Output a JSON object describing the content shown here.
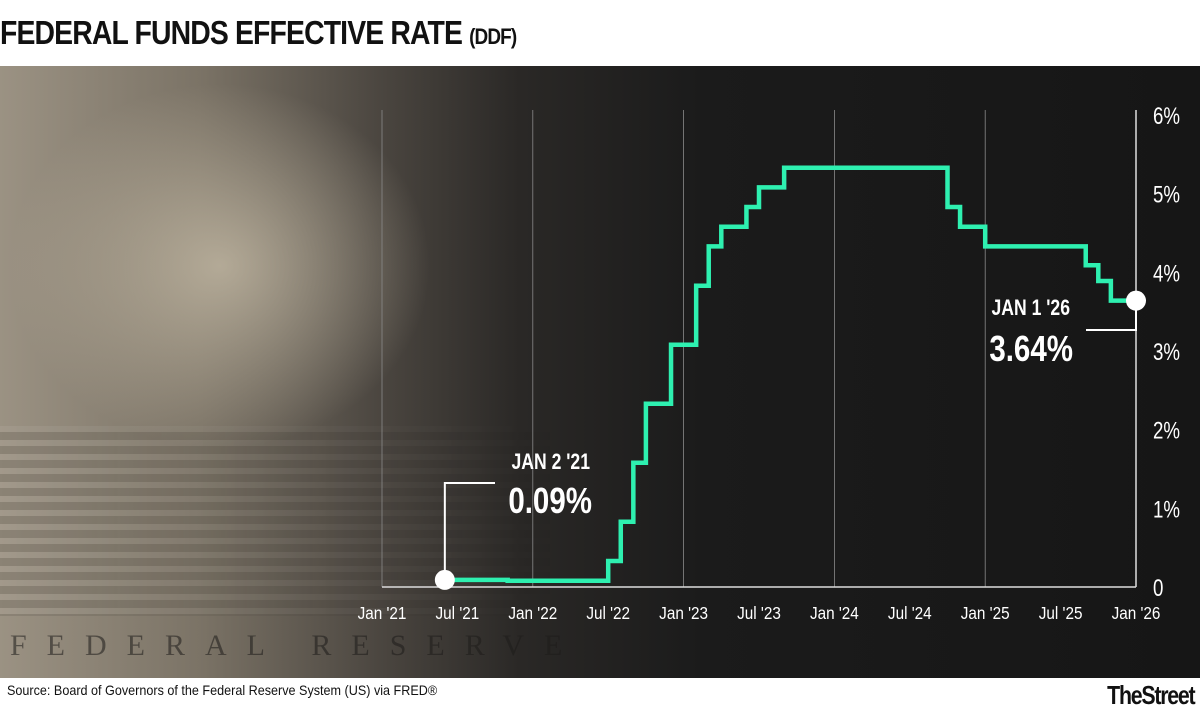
{
  "header": {
    "title": "FEDERAL FUNDS EFFECTIVE RATE",
    "subtitle": "(DDF)"
  },
  "footer": {
    "source": "Source: Board of Governors of the Federal Reserve System (US) via FRED®",
    "logo": "TheStreet"
  },
  "background": {
    "engraving": "FEDERAL RESERVE"
  },
  "colors": {
    "line": "#2ef0b0",
    "background": "#161616",
    "text": "#ffffff",
    "grid": "#8a8a8a"
  },
  "chart_data": {
    "type": "line",
    "step": true,
    "title": "FEDERAL FUNDS EFFECTIVE RATE (DDF)",
    "xlabel": "",
    "ylabel": "",
    "x_ticks": [
      "Jan '21",
      "Jul '21",
      "Jan '22",
      "Jul '22",
      "Jan '23",
      "Jul '23",
      "Jan '24",
      "Jul '24",
      "Jan '25",
      "Jul '25",
      "Jan '26"
    ],
    "y_ticks": [
      "0",
      "1%",
      "2%",
      "3%",
      "4%",
      "5%",
      "6%"
    ],
    "ylim": [
      0,
      6
    ],
    "xlim": [
      "2021-01",
      "2026-01"
    ],
    "grid": "vertical lines at each January",
    "y_axis_position": "right",
    "points": [
      {
        "x": "2021-06",
        "y": 0.09
      },
      {
        "x": "2021-11",
        "y": 0.08
      },
      {
        "x": "2022-01",
        "y": 0.08
      },
      {
        "x": "2022-07",
        "y": 0.33
      },
      {
        "x": "2022-08",
        "y": 0.83
      },
      {
        "x": "2022-09",
        "y": 1.58
      },
      {
        "x": "2022-10",
        "y": 2.33
      },
      {
        "x": "2022-12",
        "y": 3.08
      },
      {
        "x": "2023-02",
        "y": 3.83
      },
      {
        "x": "2023-03",
        "y": 4.33
      },
      {
        "x": "2023-04",
        "y": 4.58
      },
      {
        "x": "2023-06",
        "y": 4.83
      },
      {
        "x": "2023-07",
        "y": 5.08
      },
      {
        "x": "2023-09",
        "y": 5.33
      },
      {
        "x": "2024-10",
        "y": 4.83
      },
      {
        "x": "2024-11",
        "y": 4.58
      },
      {
        "x": "2025-01",
        "y": 4.33
      },
      {
        "x": "2025-09",
        "y": 4.09
      },
      {
        "x": "2025-10",
        "y": 3.89
      },
      {
        "x": "2025-11",
        "y": 3.64
      },
      {
        "x": "2026-01",
        "y": 3.64
      }
    ],
    "annotations": [
      {
        "label": "JAN 2 '21",
        "value": "0.09%"
      },
      {
        "label": "JAN 1 '26",
        "value": "3.64%"
      }
    ]
  }
}
